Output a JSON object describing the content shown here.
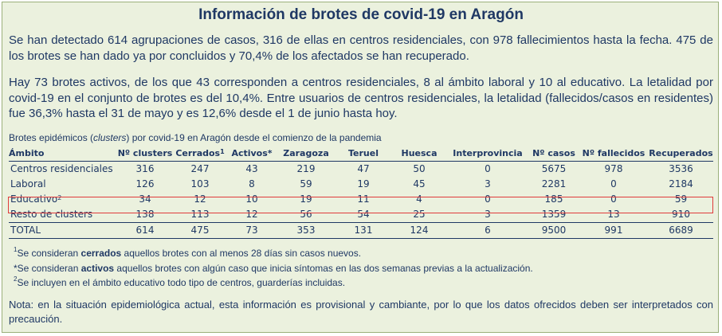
{
  "title": "Información de brotes de covid-19 en Aragón",
  "paragraph1": "Se han detectado 614 agrupaciones de casos, 316 de ellas en centros residenciales, con 978 fallecimientos hasta la fecha. 475 de los brotes se han dado ya por concluidos y 70,4% de los afectados se han recuperado.",
  "paragraph2": "Hay 73 brotes activos, de los que 43 corresponden a centros residenciales, 8 al ámbito laboral y 10 al educativo. La letalidad por covid-19 en el conjunto de brotes es del 10,4%. Entre usuarios de centros residenciales, la letalidad (fallecidos/casos en residentes) fue 36,3% hasta el 31 de mayo y es 12,6% desde el 1 de junio hasta hoy.",
  "caption": {
    "before": "Brotes epidémicos (",
    "italic": "clusters",
    "after": ") por covid-19 en Aragón desde el comienzo de la pandemia"
  },
  "table": {
    "headers": [
      "Ámbito",
      "Nº clusters",
      "Cerrados",
      "Activos*",
      "Zaragoza",
      "Teruel",
      "Huesca",
      "Interprovincia",
      "Nº casos",
      "Nº fallecidos",
      "Recuperados"
    ],
    "header_sup_cerrados": "1",
    "rows": [
      [
        "Centros residenciales",
        "316",
        "247",
        "43",
        "219",
        "47",
        "50",
        "0",
        "5675",
        "978",
        "3536"
      ],
      [
        "Laboral",
        "126",
        "103",
        "8",
        "59",
        "19",
        "45",
        "3",
        "2281",
        "0",
        "2184"
      ],
      [
        "Educativo",
        "34",
        "12",
        "10",
        "19",
        "11",
        "4",
        "0",
        "185",
        "0",
        "59"
      ],
      [
        "Resto de clusters",
        "138",
        "113",
        "12",
        "56",
        "54",
        "25",
        "3",
        "1359",
        "13",
        "910"
      ],
      [
        "TOTAL",
        "614",
        "475",
        "73",
        "353",
        "131",
        "124",
        "6",
        "9500",
        "991",
        "6689"
      ]
    ],
    "educativo_sup": "2"
  },
  "notes": {
    "n1_sup": "1",
    "n1_before": "Se consideran ",
    "n1_bold": "cerrados",
    "n1_after": " aquellos brotes con al menos 28 días sin casos nuevos.",
    "n2_before": "*Se consideran ",
    "n2_bold": "activos",
    "n2_after": " aquellos brotes con algún caso que inicia síntomas en las dos semanas previas a la actualización.",
    "n3_sup": "2",
    "n3_text": "Se incluyen en el ámbito educativo todo tipo de centros, guarderías incluidas."
  },
  "final_note": "Nota: en la situación epidemiológica actual, esta información es provisional y cambiante, por lo que los datos ofrecidos deben ser interpretados con precaución.",
  "colors": {
    "background": "#ebf1de",
    "text": "#1f3864",
    "highlight": "#e03b3b"
  }
}
